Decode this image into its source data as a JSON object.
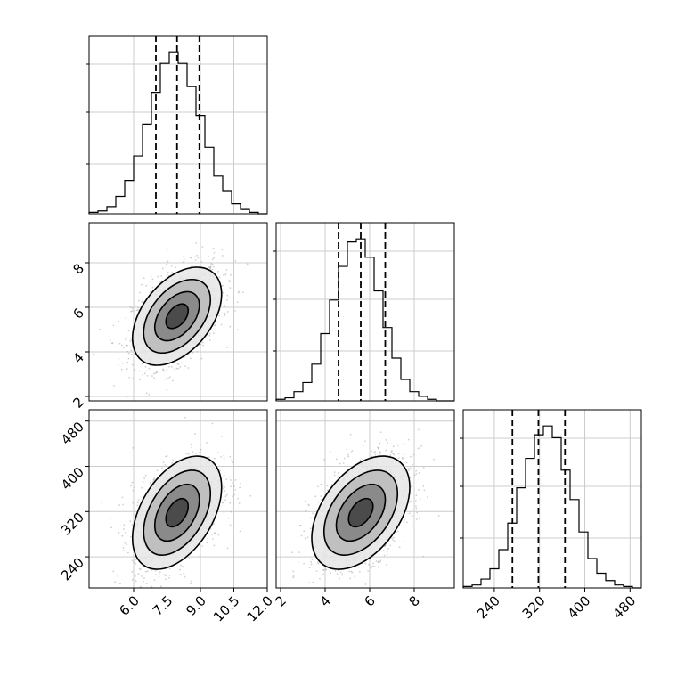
{
  "chart_data": {
    "type": "corner",
    "variables": [
      {
        "ticks": [
          "6.0",
          "7.5",
          "9.0",
          "10.5",
          "12.0"
        ],
        "range": [
          4.0,
          12.0
        ],
        "quantiles": [
          7.0,
          7.95,
          8.95
        ]
      },
      {
        "ticks": [
          "2",
          "4",
          "6",
          "8"
        ],
        "range": [
          1.8,
          9.8
        ],
        "quantiles": [
          4.6,
          5.6,
          6.7
        ]
      },
      {
        "ticks": [
          "240",
          "320",
          "400",
          "480"
        ],
        "range": [
          185,
          500
        ],
        "quantiles": [
          272,
          318,
          365
        ]
      }
    ],
    "histograms": [
      [
        0.5,
        1,
        2.5,
        6,
        11.5,
        20,
        31,
        42,
        52,
        56,
        52,
        44,
        34,
        23,
        13,
        8,
        3.5,
        1.5,
        0.5,
        0
      ],
      [
        0.5,
        1,
        3,
        6,
        12,
        22,
        33,
        44,
        52,
        53,
        47,
        36,
        24,
        14,
        7,
        3,
        1.5,
        0.5,
        0,
        0
      ],
      [
        0.5,
        1,
        3,
        6.5,
        13,
        22,
        34,
        44,
        52,
        55,
        51,
        40,
        30,
        19,
        10,
        5,
        2.5,
        1,
        0.5,
        0
      ]
    ],
    "correlations": {
      "1-0": 0.45,
      "2-0": 0.45,
      "2-1": 0.45
    },
    "centers": [
      7.95,
      5.6,
      318
    ],
    "sigmas": [
      1.0,
      1.1,
      50
    ],
    "contour_levels": [
      0.5,
      1.0,
      1.5,
      2.0
    ],
    "colors": {
      "line": "#000000",
      "grid": "#cccccc",
      "scatter": "#aaaaaa",
      "background": "#ffffff"
    },
    "grid": true
  }
}
